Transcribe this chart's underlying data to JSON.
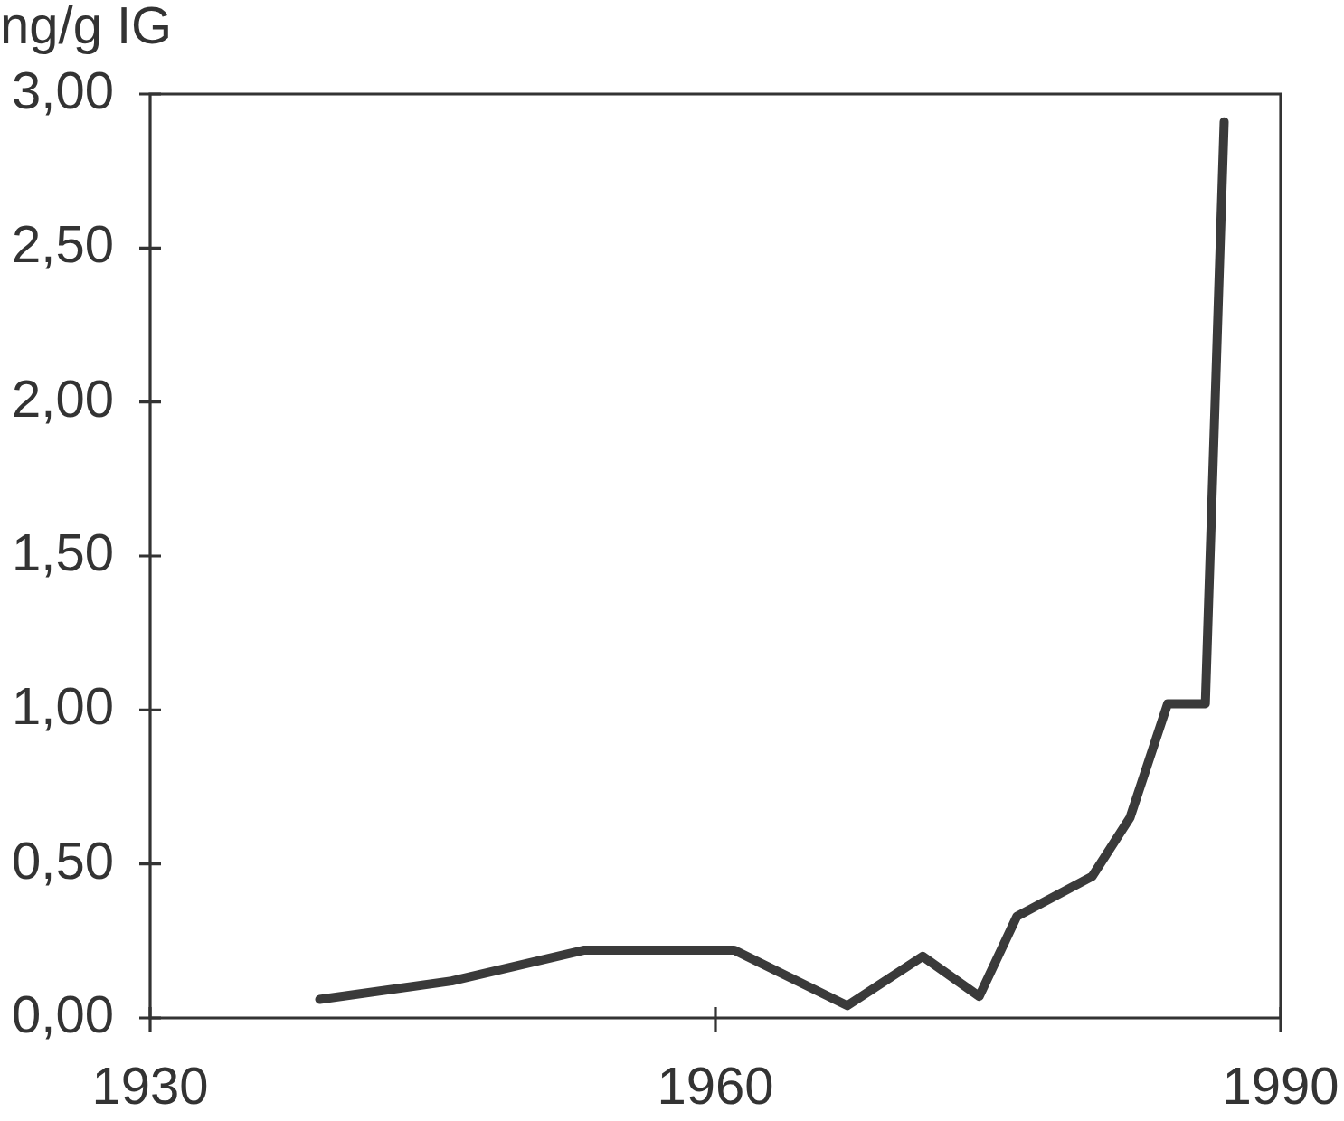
{
  "chart_data": {
    "type": "line",
    "ylabel": "ng/g IG",
    "x": [
      1939,
      1946,
      1953,
      1961,
      1967,
      1971,
      1974,
      1976,
      1980,
      1982,
      1984,
      1986,
      1987
    ],
    "series": [
      {
        "color": "#3a3a3a",
        "values": [
          0.06,
          0.12,
          0.22,
          0.22,
          0.04,
          0.2,
          0.07,
          0.33,
          0.46,
          0.65,
          1.02,
          1.02,
          2.91
        ]
      }
    ],
    "xlim": [
      1930,
      1990
    ],
    "xticks": [
      1930,
      1960,
      1990
    ],
    "ylim": [
      0,
      3
    ],
    "yticks": [
      {
        "value": 0,
        "label": "0,00"
      },
      {
        "value": 0.5,
        "label": "0,50"
      },
      {
        "value": 1,
        "label": "1,00"
      },
      {
        "value": 1.5,
        "label": "1,50"
      },
      {
        "value": 2,
        "label": "2,00"
      },
      {
        "value": 2.5,
        "label": "2,50"
      },
      {
        "value": 3,
        "label": "3,00"
      }
    ],
    "grid": false,
    "legend": false
  }
}
